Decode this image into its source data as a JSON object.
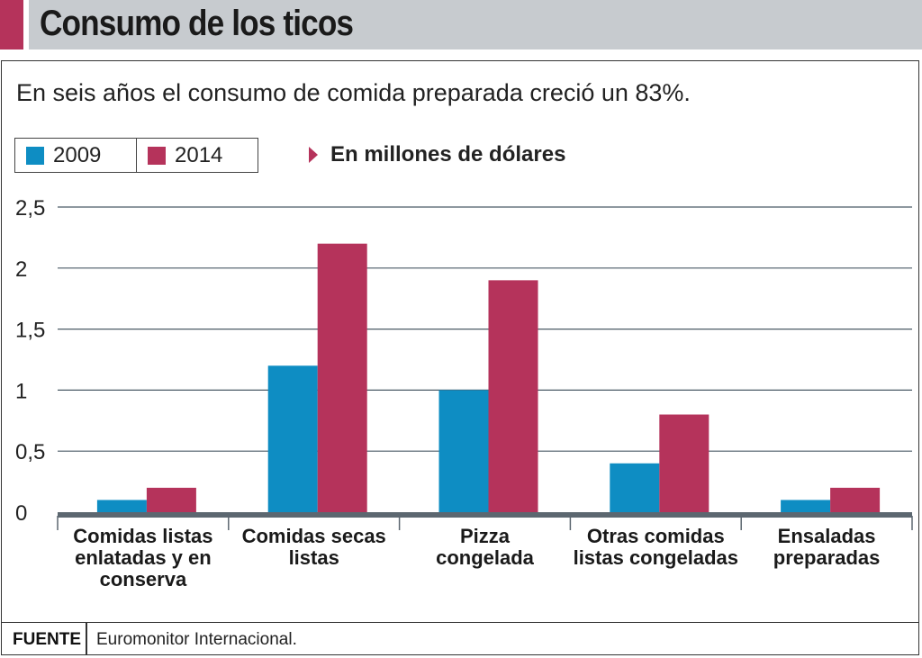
{
  "header": {
    "title": "Consumo de los ticos"
  },
  "subtitle": "En seis años el consumo de comida preparada creció un 83%.",
  "units_label": "En millones de dólares",
  "source": {
    "label": "FUENTE",
    "text": "Euromonitor Internacional."
  },
  "colors": {
    "accent": "#b5335b",
    "series_2009": "#0e8dc3",
    "series_2014": "#b5335b",
    "header_bg": "#c7cbcf"
  },
  "chart_data": {
    "type": "bar",
    "categories": [
      [
        "Comidas listas",
        "enlatadas y en",
        "conserva"
      ],
      [
        "Comidas secas",
        "listas"
      ],
      [
        "Pizza",
        "congelada"
      ],
      [
        "Otras comidas",
        "listas congeladas"
      ],
      [
        "Ensaladas",
        "preparadas"
      ]
    ],
    "series": [
      {
        "name": "2009",
        "values": [
          0.1,
          1.2,
          1.0,
          0.4,
          0.1
        ]
      },
      {
        "name": "2014",
        "values": [
          0.2,
          2.2,
          1.9,
          0.8,
          0.2
        ]
      }
    ],
    "yticks": [
      "0",
      "0,5",
      "1",
      "1,5",
      "2",
      "2,5"
    ],
    "ylim": [
      0,
      2.5
    ],
    "grid": true,
    "legend": "top-left"
  }
}
